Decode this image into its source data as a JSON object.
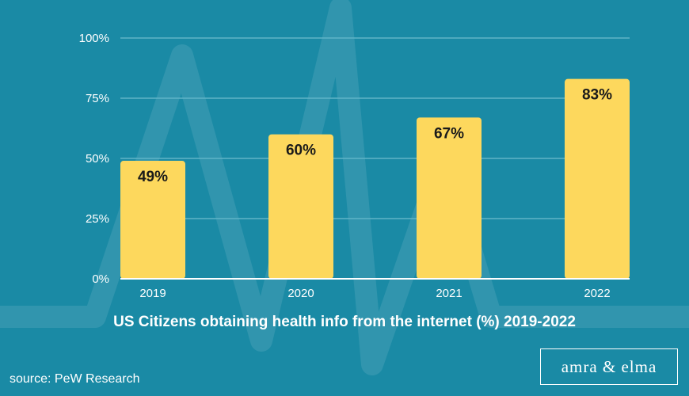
{
  "colors": {
    "background": "#1a8aa5",
    "bar": "#fdd85d",
    "grid": "#5fb3c7",
    "text": "#ffffff",
    "label": "#1a1a1a"
  },
  "chart_data": {
    "type": "bar",
    "title": "US Citizens obtaining health info from the internet (%) 2019-2022",
    "categories": [
      "2019",
      "2020",
      "2021",
      "2022"
    ],
    "values": [
      49,
      60,
      67,
      83
    ],
    "data_labels": [
      "49%",
      "60%",
      "67%",
      "83%"
    ],
    "ylim": [
      0,
      100
    ],
    "yticks": [
      0,
      25,
      50,
      75,
      100
    ],
    "ytick_labels": [
      "0%",
      "25%",
      "50%",
      "75%",
      "100%"
    ],
    "xlabel": "",
    "ylabel": "",
    "grid": true,
    "legend": "none"
  },
  "footer": {
    "source": "source: PeW Research",
    "brand": "amra & elma"
  }
}
